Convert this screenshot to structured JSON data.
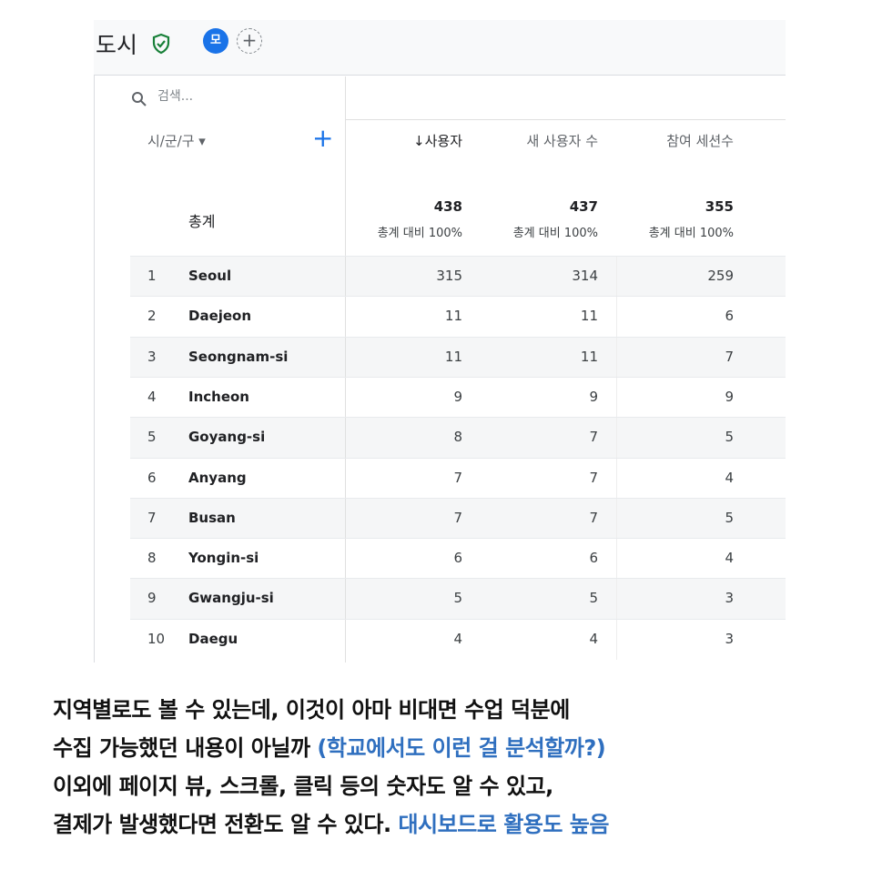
{
  "header": {
    "title": "도시",
    "avatar_label": "모",
    "add_label": "+"
  },
  "search": {
    "placeholder": "검색..."
  },
  "table": {
    "dimension_header": "시/군/구 ▾",
    "add_dimension": "+",
    "columns": [
      "↓사용자",
      "새 사용자 수",
      "참여 세션수"
    ],
    "totals": {
      "label": "총계",
      "values": [
        "438",
        "437",
        "355"
      ],
      "subs": [
        "총계 대비 100%",
        "총계 대비 100%",
        "총계 대비 100%"
      ]
    },
    "rows": [
      {
        "idx": "1",
        "city": "Seoul",
        "v": [
          "315",
          "314",
          "259"
        ]
      },
      {
        "idx": "2",
        "city": "Daejeon",
        "v": [
          "11",
          "11",
          "6"
        ]
      },
      {
        "idx": "3",
        "city": "Seongnam-si",
        "v": [
          "11",
          "11",
          "7"
        ]
      },
      {
        "idx": "4",
        "city": "Incheon",
        "v": [
          "9",
          "9",
          "9"
        ]
      },
      {
        "idx": "5",
        "city": "Goyang-si",
        "v": [
          "8",
          "7",
          "5"
        ]
      },
      {
        "idx": "6",
        "city": "Anyang",
        "v": [
          "7",
          "7",
          "4"
        ]
      },
      {
        "idx": "7",
        "city": "Busan",
        "v": [
          "7",
          "7",
          "5"
        ]
      },
      {
        "idx": "8",
        "city": "Yongin-si",
        "v": [
          "6",
          "6",
          "4"
        ]
      },
      {
        "idx": "9",
        "city": "Gwangju-si",
        "v": [
          "5",
          "5",
          "3"
        ]
      },
      {
        "idx": "10",
        "city": "Daegu",
        "v": [
          "4",
          "4",
          "3"
        ]
      }
    ]
  },
  "caption": {
    "line1": "지역별로도 볼 수 있는데, 이것이 아마 비대면 수업 덕분에",
    "line2_a": "수집 가능했던 내용이 아닐까 ",
    "line2_b": "(학교에서도 이런 걸 분석할까?)",
    "line3": "이외에 페이지 뷰, 스크롤, 클릭 등의 숫자도 알 수 있고,",
    "line4_a": "결제가 발생했다면 전환도 알 수 있다. ",
    "line4_b": "대시보드로 활용도 높음"
  },
  "colors": {
    "accent": "#1a73e8",
    "caption_blue": "#2f6fbf",
    "verified": "#188038"
  }
}
